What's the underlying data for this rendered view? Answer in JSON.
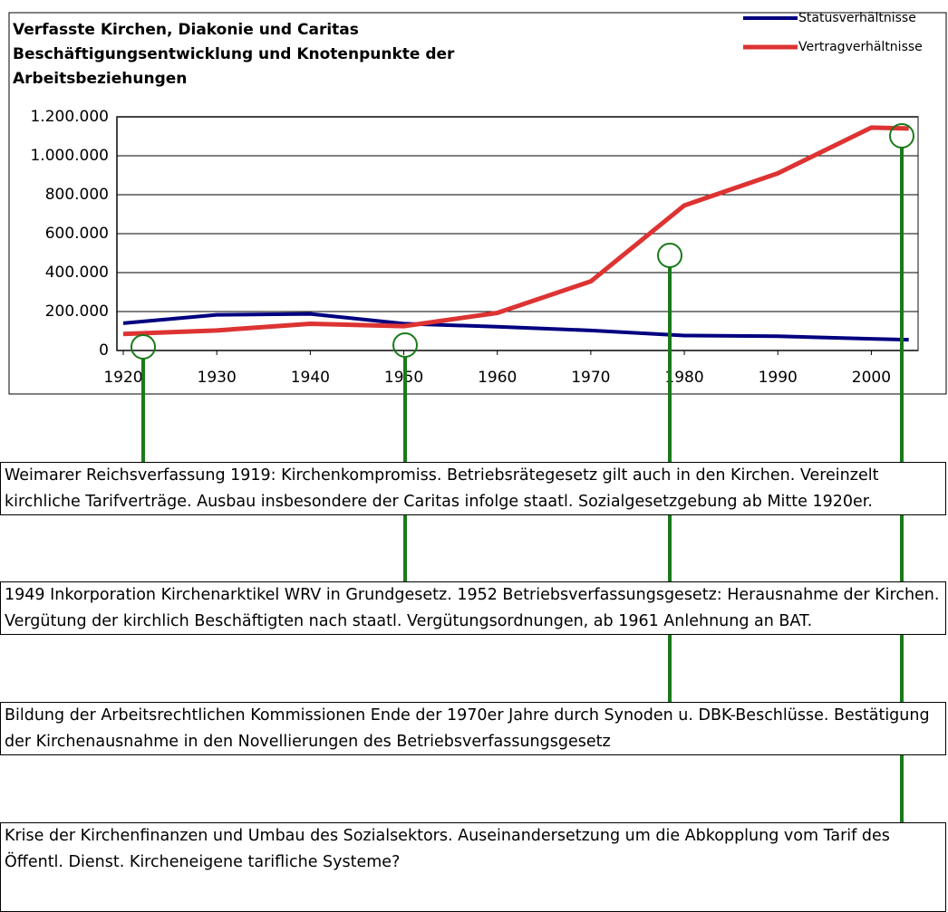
{
  "chart_data": {
    "type": "line",
    "title": [
      "Verfasste Kirchen, Diakonie und Caritas",
      "Beschäftigungsentwicklung und Knotenpunkte der",
      "Arbeitsbeziehungen"
    ],
    "x": [
      1920,
      1930,
      1940,
      1950,
      1960,
      1970,
      1980,
      1990,
      2000,
      2004
    ],
    "series": [
      {
        "name": "Statusverhältnisse",
        "color": "#000080",
        "values": [
          140000,
          183000,
          188000,
          138000,
          122000,
          103000,
          77000,
          73000,
          60000,
          55000
        ]
      },
      {
        "name": "Vertragverhältnisse",
        "color": "#dd3333",
        "values": [
          85000,
          103000,
          137000,
          125000,
          193000,
          355000,
          745000,
          910000,
          1145000,
          1140000
        ]
      }
    ],
    "xlim": [
      1920,
      2005
    ],
    "xticks": [
      1920,
      1930,
      1940,
      1950,
      1960,
      1970,
      1980,
      1990,
      2000
    ],
    "ylim": [
      0,
      1200000
    ],
    "yticks": [
      0,
      {
        "value": 200000,
        "label": "200.000"
      },
      {
        "value": 400000,
        "label": "400.000"
      },
      {
        "value": 600000,
        "label": "600.000"
      },
      {
        "value": 800000,
        "label": "800.000"
      },
      {
        "value": 1000000,
        "label": "1.000.000"
      },
      {
        "value": 1200000,
        "label": "1.200.000"
      }
    ],
    "grid": true,
    "legend": "top-right",
    "annotations": [
      "Weimarer Reichsverfassung 1919: Kirchenkompromiss. Betriebsrätegesetz gilt auch in den Kirchen. Vereinzelt kirchliche Tarifverträge. Ausbau insbesondere der Caritas infolge staatl. Sozialgesetzgebung ab Mitte 1920er.",
      "1949 Inkorporation Kirchenarktikel WRV in Grundgesetz. 1952 Betriebsverfassungsgesetz: Herausnahme der Kirchen. Vergütung der kirchlich Beschäftigten nach staatl. Vergütungsordnungen, ab 1961  Anlehnung an BAT.",
      "Bildung der Arbeitsrechtlichen Kommissionen Ende der 1970er Jahre durch Synoden u. DBK-Beschlüsse. Bestätigung der Kirchenausnahme in den Novellierungen des Betriebsverfassungsgesetz",
      "Krise der Kirchenfinanzen und Umbau des Sozialsektors. Auseinandersetzung um die Abkopplung vom Tarif des Öffentl. Dienst. Kircheneigene tarifliche Systeme?"
    ]
  }
}
